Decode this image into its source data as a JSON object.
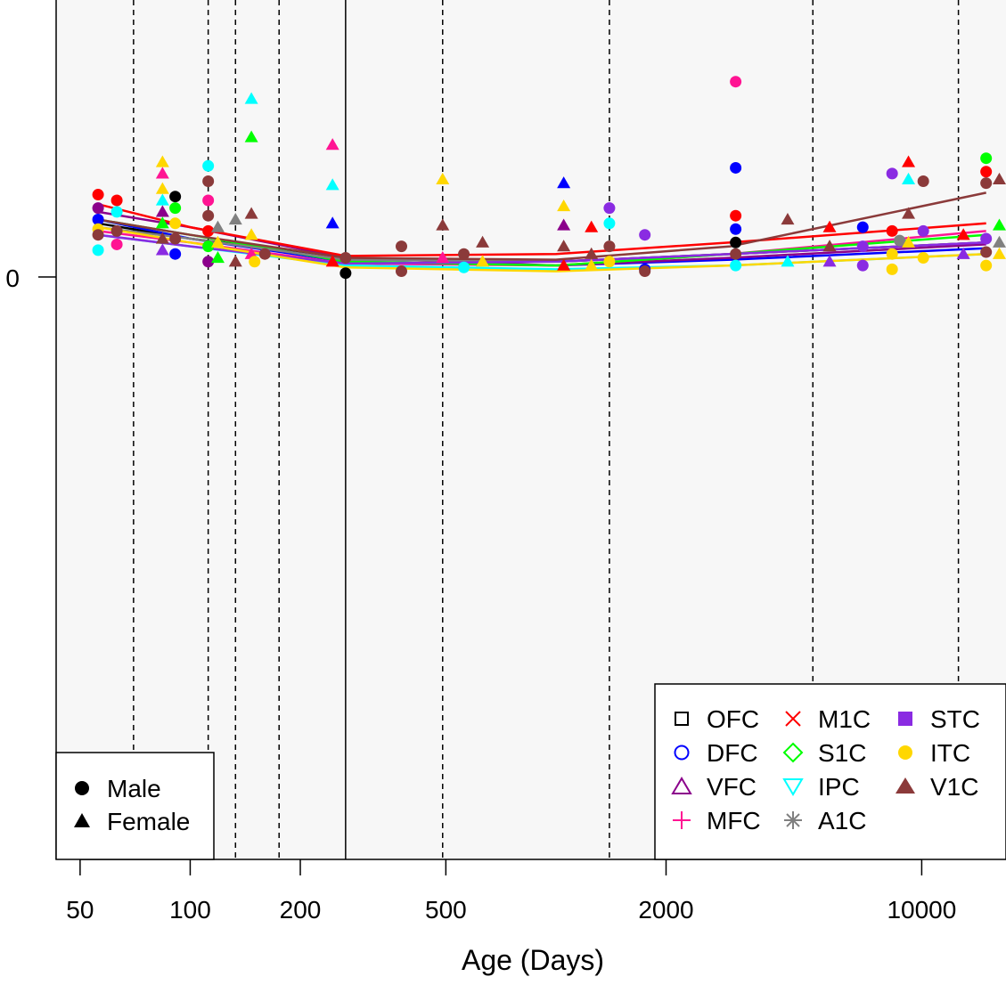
{
  "chart_data": {
    "type": "scatter",
    "title": "",
    "xlabel": "Age (Days)",
    "ylabel": "",
    "x_scale": "log",
    "xlim": [
      43,
      17000
    ],
    "ylim": [
      -6.3,
      2.9
    ],
    "x_ticks": [
      50,
      100,
      200,
      500,
      2000,
      10000
    ],
    "y_ticks": [
      0
    ],
    "background": "#f7f7f7",
    "period_boundaries_dashed": [
      70,
      112,
      133,
      175,
      490,
      1400,
      5040,
      12600
    ],
    "birth_line": 266,
    "sex_legend": {
      "position": "bottom-left",
      "entries": [
        {
          "label": "Male",
          "shape": "circle"
        },
        {
          "label": "Female",
          "shape": "triangle"
        }
      ]
    },
    "region_legend": {
      "position": "bottom-right",
      "entries": [
        {
          "label": "OFC",
          "color": "#000000",
          "symbol": "square-open"
        },
        {
          "label": "DFC",
          "color": "#0000ff",
          "symbol": "circle-open"
        },
        {
          "label": "VFC",
          "color": "#8b008b",
          "symbol": "triangle-open"
        },
        {
          "label": "MFC",
          "color": "#ff1493",
          "symbol": "plus"
        },
        {
          "label": "M1C",
          "color": "#ff0000",
          "symbol": "cross"
        },
        {
          "label": "S1C",
          "color": "#00ff00",
          "symbol": "diamond-open"
        },
        {
          "label": "IPC",
          "color": "#00ffff",
          "symbol": "triangle-down-open"
        },
        {
          "label": "A1C",
          "color": "#808080",
          "symbol": "asterisk"
        },
        {
          "label": "STC",
          "color": "#8a2be2",
          "symbol": "square-filled"
        },
        {
          "label": "ITC",
          "color": "#ffd700",
          "symbol": "circle-filled"
        },
        {
          "label": "V1C",
          "color": "#8b3a3a",
          "symbol": "triangle-filled"
        }
      ]
    },
    "points": [
      {
        "x": 56,
        "y": 0.43,
        "region": "M1C",
        "sex": "male"
      },
      {
        "x": 56,
        "y": 0.36,
        "region": "VFC",
        "sex": "male"
      },
      {
        "x": 56,
        "y": 0.3,
        "region": "DFC",
        "sex": "male"
      },
      {
        "x": 56,
        "y": 0.25,
        "region": "ITC",
        "sex": "male"
      },
      {
        "x": 56,
        "y": 0.22,
        "region": "V1C",
        "sex": "male"
      },
      {
        "x": 56,
        "y": 0.14,
        "region": "IPC",
        "sex": "male"
      },
      {
        "x": 63,
        "y": 0.4,
        "region": "M1C",
        "sex": "male"
      },
      {
        "x": 63,
        "y": 0.34,
        "region": "IPC",
        "sex": "male"
      },
      {
        "x": 63,
        "y": 0.24,
        "region": "V1C",
        "sex": "male"
      },
      {
        "x": 63,
        "y": 0.17,
        "region": "MFC",
        "sex": "male"
      },
      {
        "x": 84,
        "y": 0.6,
        "region": "ITC",
        "sex": "female"
      },
      {
        "x": 84,
        "y": 0.54,
        "region": "MFC",
        "sex": "female"
      },
      {
        "x": 84,
        "y": 0.46,
        "region": "ITC",
        "sex": "female"
      },
      {
        "x": 84,
        "y": 0.4,
        "region": "IPC",
        "sex": "female"
      },
      {
        "x": 84,
        "y": 0.34,
        "region": "VFC",
        "sex": "female"
      },
      {
        "x": 84,
        "y": 0.28,
        "region": "S1C",
        "sex": "female"
      },
      {
        "x": 84,
        "y": 0.2,
        "region": "V1C",
        "sex": "female"
      },
      {
        "x": 84,
        "y": 0.14,
        "region": "STC",
        "sex": "female"
      },
      {
        "x": 91,
        "y": 0.42,
        "region": "OFC",
        "sex": "male"
      },
      {
        "x": 91,
        "y": 0.36,
        "region": "S1C",
        "sex": "male"
      },
      {
        "x": 91,
        "y": 0.28,
        "region": "ITC",
        "sex": "male"
      },
      {
        "x": 91,
        "y": 0.2,
        "region": "V1C",
        "sex": "male"
      },
      {
        "x": 91,
        "y": 0.12,
        "region": "DFC",
        "sex": "male"
      },
      {
        "x": 112,
        "y": 0.58,
        "region": "IPC",
        "sex": "male"
      },
      {
        "x": 112,
        "y": 0.5,
        "region": "V1C",
        "sex": "male"
      },
      {
        "x": 112,
        "y": 0.4,
        "region": "MFC",
        "sex": "male"
      },
      {
        "x": 112,
        "y": 0.32,
        "region": "V1C",
        "sex": "male"
      },
      {
        "x": 112,
        "y": 0.24,
        "region": "M1C",
        "sex": "male"
      },
      {
        "x": 112,
        "y": 0.16,
        "region": "S1C",
        "sex": "male"
      },
      {
        "x": 112,
        "y": 0.08,
        "region": "VFC",
        "sex": "male"
      },
      {
        "x": 119,
        "y": 0.26,
        "region": "A1C",
        "sex": "female"
      },
      {
        "x": 119,
        "y": 0.18,
        "region": "ITC",
        "sex": "female"
      },
      {
        "x": 119,
        "y": 0.1,
        "region": "S1C",
        "sex": "female"
      },
      {
        "x": 133,
        "y": 0.3,
        "region": "A1C",
        "sex": "female"
      },
      {
        "x": 133,
        "y": 0.08,
        "region": "V1C",
        "sex": "female"
      },
      {
        "x": 147,
        "y": 0.93,
        "region": "IPC",
        "sex": "female"
      },
      {
        "x": 147,
        "y": 0.73,
        "region": "S1C",
        "sex": "female"
      },
      {
        "x": 147,
        "y": 0.33,
        "region": "V1C",
        "sex": "female"
      },
      {
        "x": 147,
        "y": 0.22,
        "region": "ITC",
        "sex": "female"
      },
      {
        "x": 147,
        "y": 0.12,
        "region": "MFC",
        "sex": "female"
      },
      {
        "x": 150,
        "y": 0.08,
        "region": "ITC",
        "sex": "male"
      },
      {
        "x": 160,
        "y": 0.12,
        "region": "V1C",
        "sex": "male"
      },
      {
        "x": 245,
        "y": 0.69,
        "region": "MFC",
        "sex": "female"
      },
      {
        "x": 245,
        "y": 0.48,
        "region": "IPC",
        "sex": "female"
      },
      {
        "x": 245,
        "y": 0.28,
        "region": "DFC",
        "sex": "female"
      },
      {
        "x": 245,
        "y": 0.08,
        "region": "M1C",
        "sex": "female"
      },
      {
        "x": 266,
        "y": 0.1,
        "region": "V1C",
        "sex": "male"
      },
      {
        "x": 266,
        "y": 0.02,
        "region": "OFC",
        "sex": "male"
      },
      {
        "x": 378,
        "y": 0.16,
        "region": "V1C",
        "sex": "male"
      },
      {
        "x": 378,
        "y": 0.03,
        "region": "V1C",
        "sex": "male"
      },
      {
        "x": 490,
        "y": 0.51,
        "region": "ITC",
        "sex": "female"
      },
      {
        "x": 490,
        "y": 0.27,
        "region": "V1C",
        "sex": "female"
      },
      {
        "x": 490,
        "y": 0.1,
        "region": "MFC",
        "sex": "female"
      },
      {
        "x": 560,
        "y": 0.12,
        "region": "V1C",
        "sex": "male"
      },
      {
        "x": 560,
        "y": 0.05,
        "region": "IPC",
        "sex": "male"
      },
      {
        "x": 630,
        "y": 0.18,
        "region": "V1C",
        "sex": "female"
      },
      {
        "x": 630,
        "y": 0.08,
        "region": "ITC",
        "sex": "female"
      },
      {
        "x": 1050,
        "y": 0.49,
        "region": "DFC",
        "sex": "female"
      },
      {
        "x": 1050,
        "y": 0.37,
        "region": "ITC",
        "sex": "female"
      },
      {
        "x": 1050,
        "y": 0.27,
        "region": "VFC",
        "sex": "female"
      },
      {
        "x": 1050,
        "y": 0.16,
        "region": "V1C",
        "sex": "female"
      },
      {
        "x": 1050,
        "y": 0.06,
        "region": "M1C",
        "sex": "female"
      },
      {
        "x": 1250,
        "y": 0.26,
        "region": "M1C",
        "sex": "female"
      },
      {
        "x": 1250,
        "y": 0.12,
        "region": "V1C",
        "sex": "female"
      },
      {
        "x": 1250,
        "y": 0.06,
        "region": "ITC",
        "sex": "female"
      },
      {
        "x": 1400,
        "y": 0.36,
        "region": "STC",
        "sex": "male"
      },
      {
        "x": 1400,
        "y": 0.28,
        "region": "IPC",
        "sex": "male"
      },
      {
        "x": 1400,
        "y": 0.16,
        "region": "V1C",
        "sex": "male"
      },
      {
        "x": 1400,
        "y": 0.08,
        "region": "ITC",
        "sex": "male"
      },
      {
        "x": 1750,
        "y": 0.22,
        "region": "STC",
        "sex": "male"
      },
      {
        "x": 1750,
        "y": 0.04,
        "region": "DFC",
        "sex": "male"
      },
      {
        "x": 1750,
        "y": 0.03,
        "region": "V1C",
        "sex": "male"
      },
      {
        "x": 3100,
        "y": 1.02,
        "region": "MFC",
        "sex": "male"
      },
      {
        "x": 3100,
        "y": 0.57,
        "region": "DFC",
        "sex": "male"
      },
      {
        "x": 3100,
        "y": 0.32,
        "region": "M1C",
        "sex": "male"
      },
      {
        "x": 3100,
        "y": 0.25,
        "region": "DFC",
        "sex": "male"
      },
      {
        "x": 3100,
        "y": 0.18,
        "region": "OFC",
        "sex": "male"
      },
      {
        "x": 3100,
        "y": 0.12,
        "region": "V1C",
        "sex": "male"
      },
      {
        "x": 3100,
        "y": 0.06,
        "region": "IPC",
        "sex": "male"
      },
      {
        "x": 4300,
        "y": 0.3,
        "region": "V1C",
        "sex": "female"
      },
      {
        "x": 4300,
        "y": 0.08,
        "region": "IPC",
        "sex": "female"
      },
      {
        "x": 5600,
        "y": 0.26,
        "region": "M1C",
        "sex": "female"
      },
      {
        "x": 5600,
        "y": 0.16,
        "region": "V1C",
        "sex": "female"
      },
      {
        "x": 5600,
        "y": 0.08,
        "region": "STC",
        "sex": "female"
      },
      {
        "x": 6900,
        "y": 0.26,
        "region": "DFC",
        "sex": "male"
      },
      {
        "x": 6900,
        "y": 0.16,
        "region": "STC",
        "sex": "male"
      },
      {
        "x": 6900,
        "y": 0.06,
        "region": "STC",
        "sex": "male"
      },
      {
        "x": 8300,
        "y": 0.54,
        "region": "STC",
        "sex": "male"
      },
      {
        "x": 8300,
        "y": 0.24,
        "region": "M1C",
        "sex": "male"
      },
      {
        "x": 8300,
        "y": 0.12,
        "region": "ITC",
        "sex": "male"
      },
      {
        "x": 8300,
        "y": 0.04,
        "region": "ITC",
        "sex": "male"
      },
      {
        "x": 8700,
        "y": 0.19,
        "region": "A1C",
        "sex": "male"
      },
      {
        "x": 9200,
        "y": 0.6,
        "region": "M1C",
        "sex": "female"
      },
      {
        "x": 9200,
        "y": 0.51,
        "region": "IPC",
        "sex": "female"
      },
      {
        "x": 9200,
        "y": 0.33,
        "region": "V1C",
        "sex": "female"
      },
      {
        "x": 9200,
        "y": 0.18,
        "region": "ITC",
        "sex": "female"
      },
      {
        "x": 10100,
        "y": 0.5,
        "region": "V1C",
        "sex": "male"
      },
      {
        "x": 10100,
        "y": 0.24,
        "region": "STC",
        "sex": "male"
      },
      {
        "x": 10100,
        "y": 0.1,
        "region": "ITC",
        "sex": "male"
      },
      {
        "x": 13000,
        "y": 0.22,
        "region": "M1C",
        "sex": "female"
      },
      {
        "x": 13000,
        "y": 0.12,
        "region": "STC",
        "sex": "female"
      },
      {
        "x": 15000,
        "y": 0.62,
        "region": "S1C",
        "sex": "male"
      },
      {
        "x": 15000,
        "y": 0.55,
        "region": "M1C",
        "sex": "male"
      },
      {
        "x": 15000,
        "y": 0.49,
        "region": "V1C",
        "sex": "male"
      },
      {
        "x": 15000,
        "y": 0.2,
        "region": "STC",
        "sex": "male"
      },
      {
        "x": 15000,
        "y": 0.06,
        "region": "ITC",
        "sex": "male"
      },
      {
        "x": 15000,
        "y": 0.13,
        "region": "V1C",
        "sex": "male"
      },
      {
        "x": 16300,
        "y": 0.51,
        "region": "V1C",
        "sex": "female"
      },
      {
        "x": 16300,
        "y": 0.27,
        "region": "S1C",
        "sex": "female"
      },
      {
        "x": 16300,
        "y": 0.18,
        "region": "A1C",
        "sex": "female"
      },
      {
        "x": 16300,
        "y": 0.12,
        "region": "ITC",
        "sex": "female"
      }
    ],
    "series": [
      {
        "name": "OFC",
        "x": [
          56,
          100,
          266,
          1000,
          3000,
          15000
        ],
        "y": [
          0.28,
          0.2,
          0.1,
          0.08,
          0.12,
          0.18
        ]
      },
      {
        "name": "DFC",
        "x": [
          56,
          100,
          266,
          1000,
          3000,
          15000
        ],
        "y": [
          0.3,
          0.2,
          0.08,
          0.06,
          0.09,
          0.15
        ]
      },
      {
        "name": "VFC",
        "x": [
          56,
          100,
          266,
          1000,
          3000,
          15000
        ],
        "y": [
          0.34,
          0.26,
          0.1,
          0.06,
          0.1,
          0.17
        ]
      },
      {
        "name": "MFC",
        "x": [
          56,
          100,
          266,
          1000,
          3000,
          15000
        ],
        "y": [
          0.24,
          0.18,
          0.07,
          0.06,
          0.12,
          0.24
        ]
      },
      {
        "name": "M1C",
        "x": [
          56,
          100,
          266,
          1000,
          3000,
          15000
        ],
        "y": [
          0.38,
          0.26,
          0.11,
          0.12,
          0.18,
          0.28
        ]
      },
      {
        "name": "S1C",
        "x": [
          56,
          100,
          266,
          1000,
          3000,
          15000
        ],
        "y": [
          0.3,
          0.22,
          0.08,
          0.06,
          0.12,
          0.22
        ]
      },
      {
        "name": "IPC",
        "x": [
          56,
          100,
          266,
          1000,
          3000,
          15000
        ],
        "y": [
          0.22,
          0.16,
          0.06,
          0.04,
          0.06,
          0.12
        ]
      },
      {
        "name": "A1C",
        "x": [
          56,
          100,
          266,
          1000,
          3000,
          15000
        ],
        "y": [
          0.26,
          0.2,
          0.09,
          0.08,
          0.12,
          0.18
        ]
      },
      {
        "name": "STC",
        "x": [
          56,
          100,
          266,
          1000,
          3000,
          15000
        ],
        "y": [
          0.22,
          0.16,
          0.07,
          0.08,
          0.12,
          0.18
        ]
      },
      {
        "name": "ITC",
        "x": [
          56,
          100,
          266,
          1000,
          3000,
          15000
        ],
        "y": [
          0.26,
          0.18,
          0.05,
          0.03,
          0.06,
          0.12
        ]
      },
      {
        "name": "V1C",
        "x": [
          56,
          100,
          266,
          1000,
          3000,
          15000
        ],
        "y": [
          0.3,
          0.22,
          0.1,
          0.09,
          0.16,
          0.44
        ]
      }
    ]
  }
}
